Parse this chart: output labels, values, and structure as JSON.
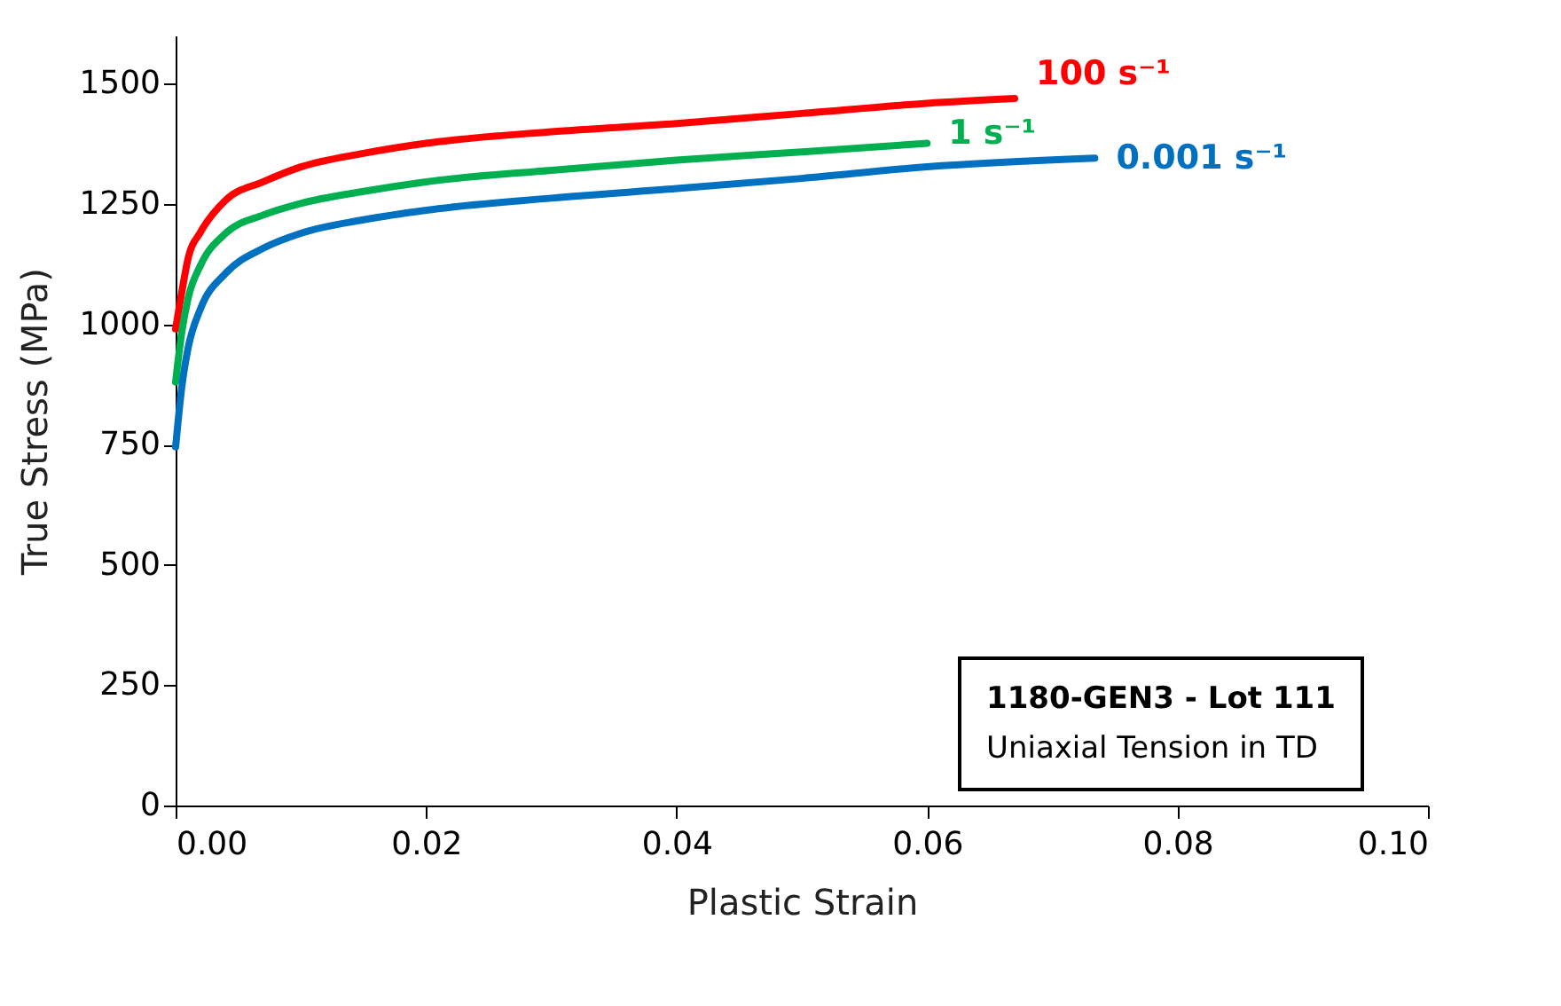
{
  "chart_data": {
    "type": "line",
    "xlabel": "Plastic Strain",
    "ylabel": "True Stress (MPa)",
    "xlim": [
      0,
      0.1
    ],
    "xticks": [
      {
        "value": 0,
        "label": "0.00"
      },
      {
        "value": 0.02,
        "label": "0.02"
      },
      {
        "value": 0.04,
        "label": "0.04"
      },
      {
        "value": 0.06,
        "label": "0.06"
      },
      {
        "value": 0.08,
        "label": "0.08"
      },
      {
        "value": 0.1,
        "label": "0.10"
      }
    ],
    "ylim": [
      0,
      1600
    ],
    "yticks": [
      0,
      250,
      500,
      750,
      1000,
      1250,
      1500
    ],
    "grid": false,
    "marker": "none",
    "line_style": "solid",
    "annotations": [
      "1180-GEN3 - Lot 111",
      "Uniaxial Tension in TD"
    ],
    "series": [
      {
        "name": "100 s⁻¹",
        "color": "#ff0000",
        "x": [
          0,
          0.0005,
          0.001,
          0.002,
          0.004,
          0.007,
          0.01,
          0.015,
          0.02,
          0.03,
          0.04,
          0.05,
          0.06,
          0.067
        ],
        "values": [
          990,
          1068,
          1137,
          1192,
          1258,
          1296,
          1327,
          1355,
          1376,
          1400,
          1417,
          1438,
          1459,
          1469
        ]
      },
      {
        "name": "1 s⁻¹",
        "color": "#00b050",
        "x": [
          0,
          0.0005,
          0.001,
          0.002,
          0.004,
          0.007,
          0.01,
          0.015,
          0.02,
          0.03,
          0.04,
          0.05,
          0.06
        ],
        "values": [
          880,
          985,
          1054,
          1123,
          1189,
          1227,
          1251,
          1276,
          1296,
          1320,
          1341,
          1358,
          1376
        ]
      },
      {
        "name": "0.001 s⁻¹",
        "color": "#0070c0",
        "x": [
          0,
          0.0005,
          0.001,
          0.002,
          0.004,
          0.007,
          0.01,
          0.015,
          0.02,
          0.03,
          0.04,
          0.05,
          0.06,
          0.0734
        ],
        "values": [
          745,
          871,
          951,
          1033,
          1106,
          1158,
          1189,
          1217,
          1237,
          1262,
          1282,
          1303,
          1327,
          1345
        ]
      }
    ]
  }
}
